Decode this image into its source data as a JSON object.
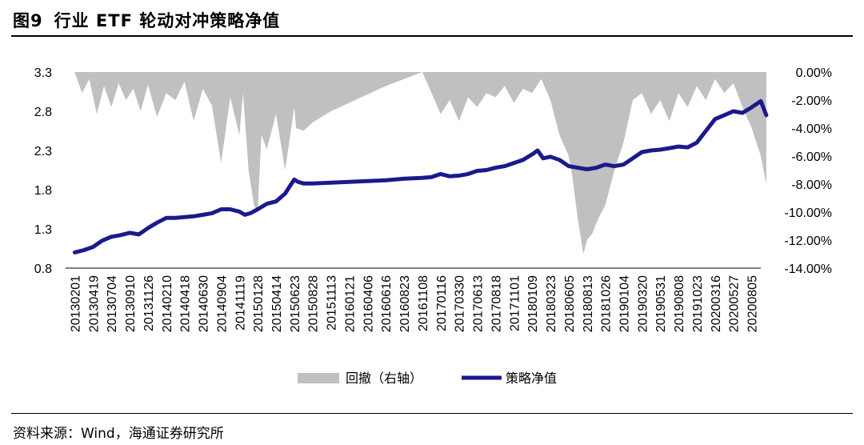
{
  "figure": {
    "label": "图9",
    "title": "行业 ETF 轮动对冲策略净值",
    "source": "资料来源：Wind，海通证券研究所"
  },
  "colors": {
    "nav_line": "#1a1a8c",
    "drawdown_fill": "#c0c0c0",
    "axis": "#000000"
  },
  "chart_data": {
    "type": "line",
    "title": "行业 ETF 轮动对冲策略净值",
    "x_tick_labels": [
      "20130201",
      "20130419",
      "20130704",
      "20130910",
      "20131126",
      "20140210",
      "20140418",
      "20140630",
      "20140904",
      "20141119",
      "20150128",
      "20150414",
      "20150623",
      "20150828",
      "20151113",
      "20160121",
      "20160406",
      "20160616",
      "20160823",
      "20161108",
      "20170116",
      "20170330",
      "20170613",
      "20170818",
      "20171101",
      "20180109",
      "20180323",
      "20180605",
      "20180813",
      "20181026",
      "20190104",
      "20190320",
      "20190531",
      "20190808",
      "20191023",
      "20200316",
      "20200527",
      "20200805"
    ],
    "left_axis": {
      "min": 0.8,
      "max": 3.3,
      "ticks": [
        "3.3",
        "2.8",
        "2.3",
        "1.8",
        "1.3",
        "0.8"
      ]
    },
    "right_axis": {
      "min": -14,
      "max": 0,
      "unit": "%",
      "ticks": [
        "0.00%",
        "-2.00%",
        "-4.00%",
        "-6.00%",
        "-8.00%",
        "-10.00%",
        "-12.00%",
        "-14.00%"
      ]
    },
    "legend_position": "bottom",
    "grid": false,
    "series": [
      {
        "name": "回撤（右轴）",
        "type": "area",
        "axis": "right",
        "color": "#c0c0c0",
        "x": [
          0,
          0.4,
          0.8,
          1.2,
          1.6,
          2,
          2.4,
          2.8,
          3.2,
          3.6,
          4,
          4.5,
          5,
          5.5,
          6,
          6.5,
          7,
          7.5,
          8,
          8.5,
          9,
          9.2,
          9.5,
          9.8,
          10,
          10.2,
          10.5,
          11,
          11.5,
          12,
          12.1,
          12.5,
          13,
          14,
          15,
          16,
          17,
          18,
          19,
          19.5,
          20,
          20.5,
          21,
          21.5,
          22,
          22.5,
          23,
          23.5,
          24,
          24.5,
          25,
          25.5,
          26,
          26.5,
          27,
          27.2,
          27.5,
          27.8,
          28,
          28.3,
          28.6,
          29,
          29.5,
          30,
          30.5,
          31,
          31.5,
          32,
          32.5,
          33,
          33.5,
          34,
          34.5,
          35,
          35.5,
          36,
          36.5,
          37,
          37.5,
          37.8
        ],
        "values": [
          0,
          -1.5,
          -0.5,
          -3,
          -1,
          -2.5,
          -0.8,
          -2,
          -1.2,
          -2.8,
          -0.9,
          -3.2,
          -1.5,
          -2,
          -0.7,
          -3.5,
          -1.2,
          -2.4,
          -6.5,
          -1.8,
          -4.5,
          -1.5,
          -7,
          -9.5,
          -10,
          -4.5,
          -5.5,
          -3,
          -7,
          -2.5,
          -4,
          -4.2,
          -3.6,
          -2.8,
          -2.2,
          -1.6,
          -1,
          -0.5,
          0,
          -1.5,
          -3,
          -2,
          -3.5,
          -1.8,
          -2.5,
          -1.5,
          -1.8,
          -1,
          -2.2,
          -1.2,
          -1.5,
          -0.5,
          -2,
          -4.5,
          -6,
          -7.5,
          -10.5,
          -13,
          -12,
          -11.5,
          -10.5,
          -9.5,
          -7,
          -5,
          -2,
          -1.5,
          -3,
          -2,
          -3.5,
          -1.5,
          -2.5,
          -1,
          -2,
          -0.5,
          -1.5,
          -0.8,
          -2.5,
          -4,
          -6,
          -8
        ]
      },
      {
        "name": "策略净值",
        "type": "line",
        "axis": "left",
        "color": "#1a1a8c",
        "x": [
          0,
          0.5,
          1,
          1.5,
          2,
          2.5,
          3,
          3.5,
          4,
          4.5,
          5,
          5.5,
          6,
          6.5,
          7,
          7.5,
          8,
          8.5,
          9,
          9.3,
          9.6,
          10,
          10.5,
          11,
          11.5,
          11.8,
          12,
          12.2,
          12.5,
          13,
          14,
          15,
          16,
          17,
          18,
          19,
          19.5,
          20,
          20.5,
          21,
          21.5,
          22,
          22.5,
          23,
          23.5,
          24,
          24.5,
          25,
          25.3,
          25.6,
          26,
          26.5,
          27,
          27.5,
          28,
          28.5,
          29,
          29.5,
          30,
          30.5,
          31,
          31.5,
          32,
          32.5,
          33,
          33.5,
          34,
          34.5,
          35,
          35.5,
          36,
          36.5,
          37,
          37.5,
          37.8
        ],
        "values": [
          1.0,
          1.03,
          1.07,
          1.15,
          1.2,
          1.22,
          1.25,
          1.23,
          1.31,
          1.38,
          1.44,
          1.44,
          1.45,
          1.46,
          1.48,
          1.5,
          1.55,
          1.55,
          1.52,
          1.48,
          1.5,
          1.55,
          1.62,
          1.65,
          1.75,
          1.86,
          1.93,
          1.9,
          1.88,
          1.88,
          1.89,
          1.9,
          1.91,
          1.92,
          1.94,
          1.95,
          1.96,
          2.0,
          1.97,
          1.98,
          2.0,
          2.04,
          2.05,
          2.08,
          2.1,
          2.14,
          2.18,
          2.25,
          2.3,
          2.2,
          2.22,
          2.18,
          2.1,
          2.08,
          2.06,
          2.08,
          2.12,
          2.1,
          2.12,
          2.2,
          2.28,
          2.3,
          2.31,
          2.33,
          2.35,
          2.34,
          2.4,
          2.55,
          2.7,
          2.75,
          2.8,
          2.78,
          2.85,
          2.93,
          2.75
        ]
      }
    ]
  }
}
